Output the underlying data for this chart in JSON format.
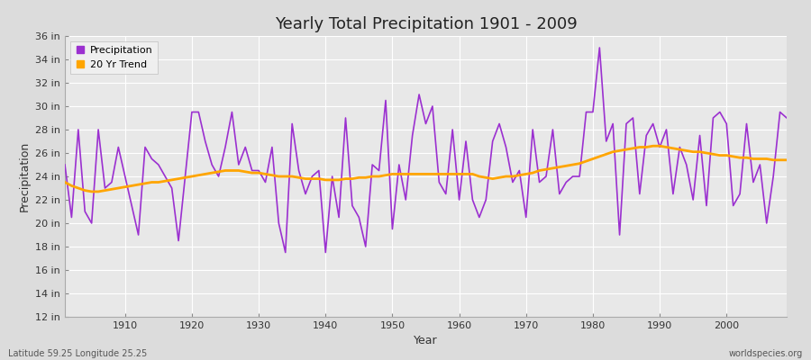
{
  "title": "Yearly Total Precipitation 1901 - 2009",
  "xlabel": "Year",
  "ylabel": "Precipitation",
  "bottom_left_text": "Latitude 59.25 Longitude 25.25",
  "bottom_right_text": "worldspecies.org",
  "precip_color": "#9B30D0",
  "trend_color": "#FFA500",
  "fig_bg_color": "#DCDCDC",
  "plot_bg_color": "#E8E8E8",
  "ylim": [
    12,
    36
  ],
  "yticks": [
    12,
    14,
    16,
    18,
    20,
    22,
    24,
    26,
    28,
    30,
    32,
    34,
    36
  ],
  "ytick_labels": [
    "12 in",
    "14 in",
    "16 in",
    "18 in",
    "20 in",
    "22 in",
    "24 in",
    "26 in",
    "28 in",
    "30 in",
    "32 in",
    "34 in",
    "36 in"
  ],
  "xtick_positions": [
    1910,
    1920,
    1930,
    1940,
    1950,
    1960,
    1970,
    1980,
    1990,
    2000
  ],
  "years": [
    1901,
    1902,
    1903,
    1904,
    1905,
    1906,
    1907,
    1908,
    1909,
    1910,
    1911,
    1912,
    1913,
    1914,
    1915,
    1916,
    1917,
    1918,
    1919,
    1920,
    1921,
    1922,
    1923,
    1924,
    1925,
    1926,
    1927,
    1928,
    1929,
    1930,
    1931,
    1932,
    1933,
    1934,
    1935,
    1936,
    1937,
    1938,
    1939,
    1940,
    1941,
    1942,
    1943,
    1944,
    1945,
    1946,
    1947,
    1948,
    1949,
    1950,
    1951,
    1952,
    1953,
    1954,
    1955,
    1956,
    1957,
    1958,
    1959,
    1960,
    1961,
    1962,
    1963,
    1964,
    1965,
    1966,
    1967,
    1968,
    1969,
    1970,
    1971,
    1972,
    1973,
    1974,
    1975,
    1976,
    1977,
    1978,
    1979,
    1980,
    1981,
    1982,
    1983,
    1984,
    1985,
    1986,
    1987,
    1988,
    1989,
    1990,
    1991,
    1992,
    1993,
    1994,
    1995,
    1996,
    1997,
    1998,
    1999,
    2000,
    2001,
    2002,
    2003,
    2004,
    2005,
    2006,
    2007,
    2008,
    2009
  ],
  "precip": [
    25.0,
    20.5,
    28.0,
    21.0,
    20.0,
    28.0,
    23.0,
    23.5,
    26.5,
    24.0,
    21.5,
    19.0,
    26.5,
    25.5,
    25.0,
    24.0,
    23.0,
    18.5,
    24.0,
    29.5,
    29.5,
    27.0,
    25.0,
    24.0,
    26.5,
    29.5,
    25.0,
    26.5,
    24.5,
    24.5,
    23.5,
    26.5,
    20.0,
    17.5,
    28.5,
    24.5,
    22.5,
    24.0,
    24.5,
    17.5,
    24.0,
    20.5,
    29.0,
    21.5,
    20.5,
    18.0,
    25.0,
    24.5,
    30.5,
    19.5,
    25.0,
    22.0,
    27.5,
    31.0,
    28.5,
    30.0,
    23.5,
    22.5,
    28.0,
    22.0,
    27.0,
    22.0,
    20.5,
    22.0,
    27.0,
    28.5,
    26.5,
    23.5,
    24.5,
    20.5,
    28.0,
    23.5,
    24.0,
    28.0,
    22.5,
    23.5,
    24.0,
    24.0,
    29.5,
    29.5,
    35.0,
    27.0,
    28.5,
    19.0,
    28.5,
    29.0,
    22.5,
    27.5,
    28.5,
    26.5,
    28.0,
    22.5,
    26.5,
    25.0,
    22.0,
    27.5,
    21.5,
    29.0,
    29.5,
    28.5,
    21.5,
    22.5,
    28.5,
    23.5,
    25.0,
    20.0,
    24.0,
    29.5,
    29.0
  ],
  "trend": [
    23.5,
    23.2,
    23.0,
    22.8,
    22.7,
    22.7,
    22.8,
    22.9,
    23.0,
    23.1,
    23.2,
    23.3,
    23.4,
    23.5,
    23.5,
    23.6,
    23.7,
    23.8,
    23.9,
    24.0,
    24.1,
    24.2,
    24.3,
    24.4,
    24.5,
    24.5,
    24.5,
    24.4,
    24.3,
    24.3,
    24.2,
    24.1,
    24.0,
    24.0,
    24.0,
    23.9,
    23.8,
    23.8,
    23.8,
    23.7,
    23.7,
    23.7,
    23.8,
    23.8,
    23.9,
    23.9,
    24.0,
    24.0,
    24.1,
    24.2,
    24.2,
    24.2,
    24.2,
    24.2,
    24.2,
    24.2,
    24.2,
    24.2,
    24.2,
    24.2,
    24.2,
    24.2,
    24.0,
    23.9,
    23.8,
    23.9,
    24.0,
    24.0,
    24.1,
    24.2,
    24.3,
    24.5,
    24.6,
    24.7,
    24.8,
    24.9,
    25.0,
    25.1,
    25.3,
    25.5,
    25.7,
    25.9,
    26.1,
    26.2,
    26.3,
    26.4,
    26.5,
    26.5,
    26.6,
    26.6,
    26.5,
    26.4,
    26.3,
    26.2,
    26.1,
    26.1,
    26.0,
    25.9,
    25.8,
    25.8,
    25.7,
    25.6,
    25.6,
    25.5,
    25.5,
    25.5,
    25.4,
    25.4,
    25.4
  ]
}
